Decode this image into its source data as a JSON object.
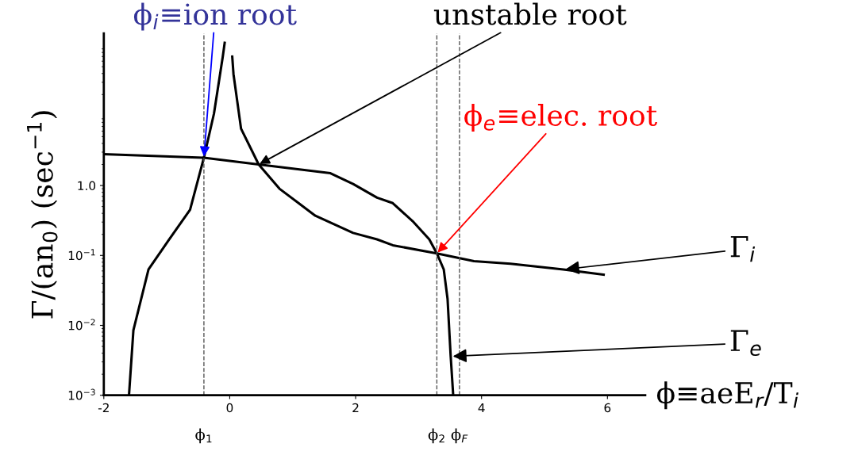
{
  "chart_data": {
    "type": "line",
    "ylabel": "Γ/(an$_{0}$) (sec$^{−1}$)",
    "xlabel": "ϕ≡aeE$_{r}$/T$_{i}$",
    "log": "y",
    "xlim": [
      -2,
      6.6
    ],
    "xticks": [
      -2,
      0,
      2,
      4,
      6
    ],
    "ylim": [
      0.001,
      150
    ],
    "yticks": [
      {
        "value": 0.001,
        "label": "10$^{−3}$"
      },
      {
        "value": 0.01,
        "label": "10$^{−2}$"
      },
      {
        "value": 0.1,
        "label": "10$^{−1}$"
      },
      {
        "value": 1,
        "label": "1.0"
      }
    ],
    "grid": false,
    "legend": false,
    "marker": "none",
    "line_style": "solid",
    "series": [
      {
        "name": "Γ$_{e}$",
        "color": "#000000",
        "x": [
          -2,
          -0.41,
          0.46,
          1.6,
          1.96,
          2.34,
          2.59,
          2.92,
          3.17,
          3.29,
          3.4,
          3.46,
          3.51,
          3.55
        ],
        "values": [
          2.8,
          2.5,
          2.0,
          1.5,
          1.05,
          0.67,
          0.56,
          0.3,
          0.17,
          0.107,
          0.063,
          0.024,
          0.0036,
          0.001
        ]
      },
      {
        "name": "Γ$_{i}$",
        "color": "#000000",
        "x": [
          -1.6,
          -1.53,
          -1.29,
          -0.96,
          -0.63,
          -0.41,
          -0.25,
          -0.11,
          -0.08,
          -0.02,
          0.04,
          0.06,
          0.18,
          0.46,
          0.79,
          1.36,
          1.96,
          2.34,
          2.59,
          3.29,
          3.88,
          4.46,
          5.3,
          5.94
        ],
        "values": [
          0.001,
          0.0085,
          0.063,
          0.17,
          0.45,
          2.5,
          10.7,
          70,
          110,
          null,
          70,
          39,
          6.5,
          2.0,
          0.9,
          0.37,
          0.21,
          0.17,
          0.14,
          0.107,
          0.083,
          0.076,
          0.063,
          0.053
        ]
      }
    ],
    "ref_lines": [
      {
        "axis": "x",
        "value": -0.41,
        "label": "ϕ$_{1}$",
        "line_style": "dashed",
        "color": "#555555"
      },
      {
        "axis": "x",
        "value": 3.29,
        "label": "ϕ$_{2}$",
        "line_style": "dashed",
        "color": "#555555"
      },
      {
        "axis": "x",
        "value": 3.65,
        "label": "ϕ$_{F}$",
        "line_style": "dashed",
        "color": "#555555"
      }
    ],
    "annotations": [
      {
        "text": "ϕ$_{i}$≡ion root",
        "x": -0.41,
        "y": 2.5
      },
      {
        "text": "unstable root",
        "x": 0.46,
        "y": 2.0
      },
      {
        "text": "ϕ$_{e}$≡elec. root",
        "x": 3.29,
        "y": 0.107
      }
    ]
  }
}
